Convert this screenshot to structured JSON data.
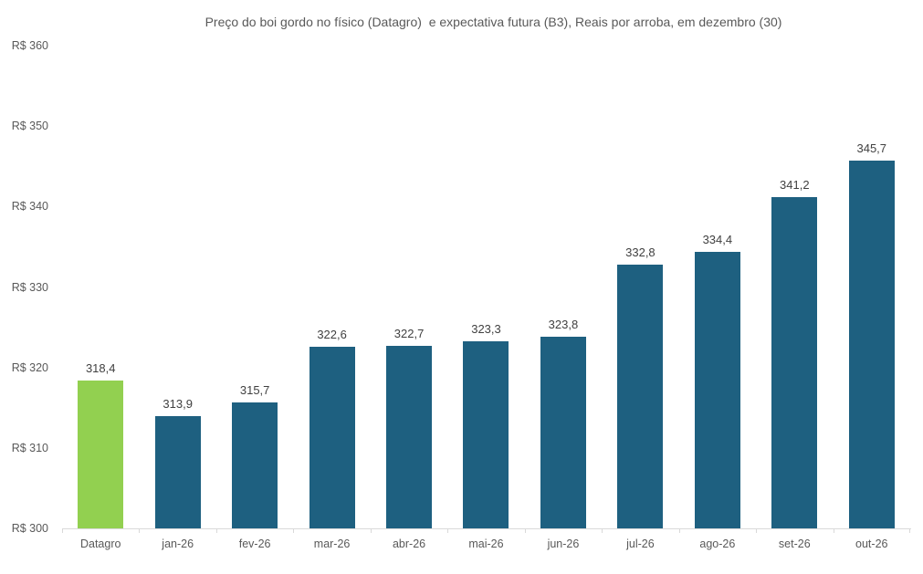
{
  "chart_data": {
    "type": "bar",
    "title": "Preço do boi gordo no físico (Datagro)  e expectativa futura (B3), Reais por arroba, em dezembro (30)",
    "categories": [
      "Datagro",
      "jan-26",
      "fev-26",
      "mar-26",
      "abr-26",
      "mai-26",
      "jun-26",
      "jul-26",
      "ago-26",
      "set-26",
      "out-26"
    ],
    "values": [
      318.4,
      313.9,
      315.7,
      322.6,
      322.7,
      323.3,
      323.8,
      332.8,
      334.4,
      341.2,
      345.7
    ],
    "value_labels": [
      "318,4",
      "313,9",
      "315,7",
      "322,6",
      "322,7",
      "323,3",
      "323,8",
      "332,8",
      "334,4",
      "341,2",
      "345,7"
    ],
    "xlabel": "",
    "ylabel": "",
    "ylim": [
      300,
      360
    ],
    "y_tick_values": [
      360,
      350,
      340,
      330,
      320,
      310,
      300
    ],
    "y_tick_labels": [
      "R$ 360",
      "R$ 350",
      "R$ 340",
      "R$ 330",
      "R$ 320",
      "R$ 310",
      "R$ 300"
    ],
    "grid": false,
    "legend": false,
    "highlight_index": 0,
    "colors": {
      "highlight_bar": "#92d050",
      "default_bar": "#1e6080",
      "axis_line": "#d9d9d9",
      "axis_label_text": "#595959",
      "data_label_text": "#404040",
      "title_text": "#595959",
      "background": "#ffffff"
    }
  }
}
